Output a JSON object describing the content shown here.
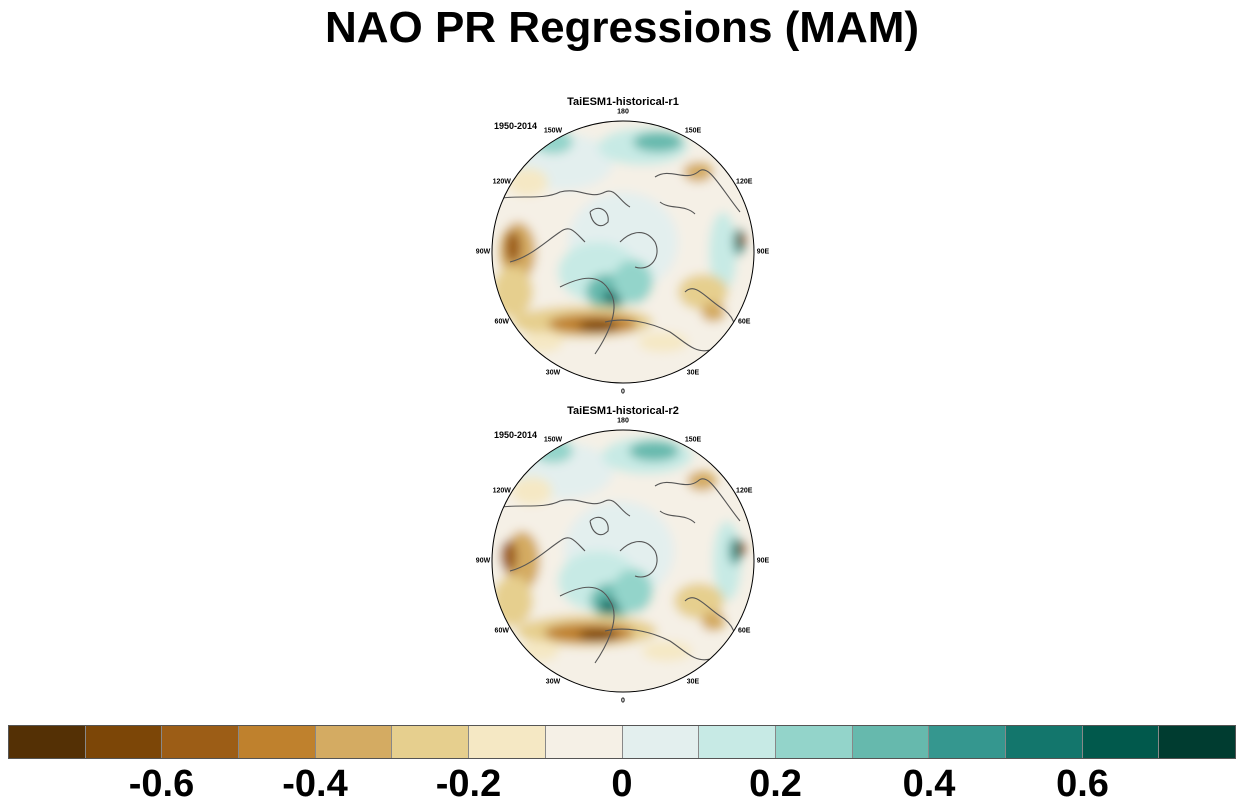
{
  "title": "NAO PR Regressions (MAM)",
  "panels": [
    {
      "title": "TaiESM1-historical-r1",
      "period": "1950-2014"
    },
    {
      "title": "TaiESM1-historical-r2",
      "period": "1950-2014"
    }
  ],
  "longitude_labels": [
    "180",
    "150E",
    "120E",
    "90E",
    "60E",
    "30E",
    "0",
    "30W",
    "60W",
    "90W",
    "120W",
    "150W"
  ],
  "colorbar": {
    "colors": [
      "#543005",
      "#7c4607",
      "#9c5d16",
      "#bf812d",
      "#d4ab62",
      "#e6cf8e",
      "#f5e8c4",
      "#f5f0e6",
      "#e3efee",
      "#c7eae5",
      "#93d4ca",
      "#66b9ad",
      "#35978f",
      "#13766c",
      "#01594c",
      "#003c30"
    ],
    "tick_labels": [
      "-0.6",
      "-0.4",
      "-0.2",
      "0",
      "0.2",
      "0.4",
      "0.6"
    ]
  }
}
